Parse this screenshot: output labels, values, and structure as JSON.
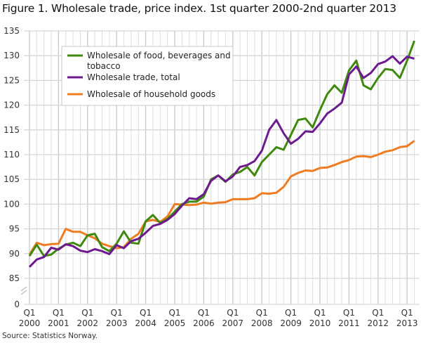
{
  "chart_data": {
    "type": "line",
    "title": "Figure 1. Wholesale trade, price index. 1st quarter 2000-2nd quarter 2013",
    "source": "Source: Statistics Norway.",
    "xlabel": "",
    "ylabel": "",
    "ylim": [
      0,
      135
    ],
    "yaxis_break": "between 0 and 85",
    "yticks": [
      0,
      85,
      90,
      95,
      100,
      105,
      110,
      115,
      120,
      125,
      130,
      135
    ],
    "xticks": [
      {
        "q": "Q1",
        "year": "2000"
      },
      {
        "q": "Q1",
        "year": "2001"
      },
      {
        "q": "Q1",
        "year": "2002"
      },
      {
        "q": "Q1",
        "year": "2003"
      },
      {
        "q": "Q1",
        "year": "2004"
      },
      {
        "q": "Q1",
        "year": "2005"
      },
      {
        "q": "Q1",
        "year": "2006"
      },
      {
        "q": "Q1",
        "year": "2007"
      },
      {
        "q": "Q1",
        "year": "2008"
      },
      {
        "q": "Q1",
        "year": "2009"
      },
      {
        "q": "Q1",
        "year": "2010"
      },
      {
        "q": "Q1",
        "year": "2011"
      },
      {
        "q": "Q1",
        "year": "2012"
      },
      {
        "q": "Q1",
        "year": "2013"
      }
    ],
    "x_range": "2000Q1-2013Q2",
    "grid": true,
    "legend_placement": "top-left",
    "series": [
      {
        "name": "Wholesale of food, beverages and tobacco",
        "color": "#3f8a0e",
        "values": [
          89.5,
          91.8,
          89.5,
          89.8,
          91,
          91.8,
          92.2,
          91.5,
          93.7,
          94,
          91.3,
          90.5,
          92,
          94.5,
          92.2,
          92,
          96.5,
          97.8,
          96.2,
          97,
          98.5,
          100,
          100.5,
          100.5,
          101.5,
          105,
          105.8,
          104.5,
          106,
          106.5,
          107.5,
          105.8,
          108.5,
          110,
          111.5,
          111,
          114,
          117,
          117.3,
          115.5,
          119,
          122.2,
          124,
          122.5,
          127,
          129,
          124,
          123.2,
          125.5,
          127.3,
          127.1,
          125.5,
          129,
          133
        ]
      },
      {
        "name": "Wholesale trade, total",
        "color": "#6e1a8f",
        "values": [
          87.3,
          88.8,
          89.3,
          91.2,
          90.8,
          91.9,
          91.5,
          90.6,
          90.3,
          90.9,
          90.5,
          89.9,
          91.7,
          91.1,
          92.5,
          93,
          94.2,
          95.6,
          96,
          96.8,
          98,
          99.7,
          101.2,
          101,
          102,
          104.7,
          105.8,
          104.6,
          105.6,
          107.5,
          107.9,
          108.7,
          110.8,
          115,
          117,
          114.3,
          112.2,
          113.2,
          114.7,
          114.6,
          116.3,
          118.3,
          119.3,
          120.5,
          126.2,
          127.8,
          125.5,
          126.5,
          128.3,
          128.8,
          129.9,
          128.4,
          129.8,
          129.4
        ]
      },
      {
        "name": "Wholesale of household goods",
        "color": "#f07c22",
        "values": [
          89.8,
          92.2,
          91.7,
          91.9,
          92,
          95,
          94.4,
          94.4,
          93.7,
          93.1,
          92,
          91.5,
          91.1,
          91.3,
          93,
          94,
          96.5,
          96.8,
          96.4,
          97.5,
          100,
          99.9,
          99.8,
          99.9,
          100.3,
          100.1,
          100.3,
          100.4,
          101,
          101,
          101,
          101.2,
          102.2,
          102.1,
          102.3,
          103.5,
          105.6,
          106.3,
          106.8,
          106.7,
          107.3,
          107.4,
          107.9,
          108.5,
          108.9,
          109.6,
          109.7,
          109.5,
          110,
          110.6,
          110.9,
          111.5,
          111.7,
          112.8
        ]
      }
    ]
  }
}
